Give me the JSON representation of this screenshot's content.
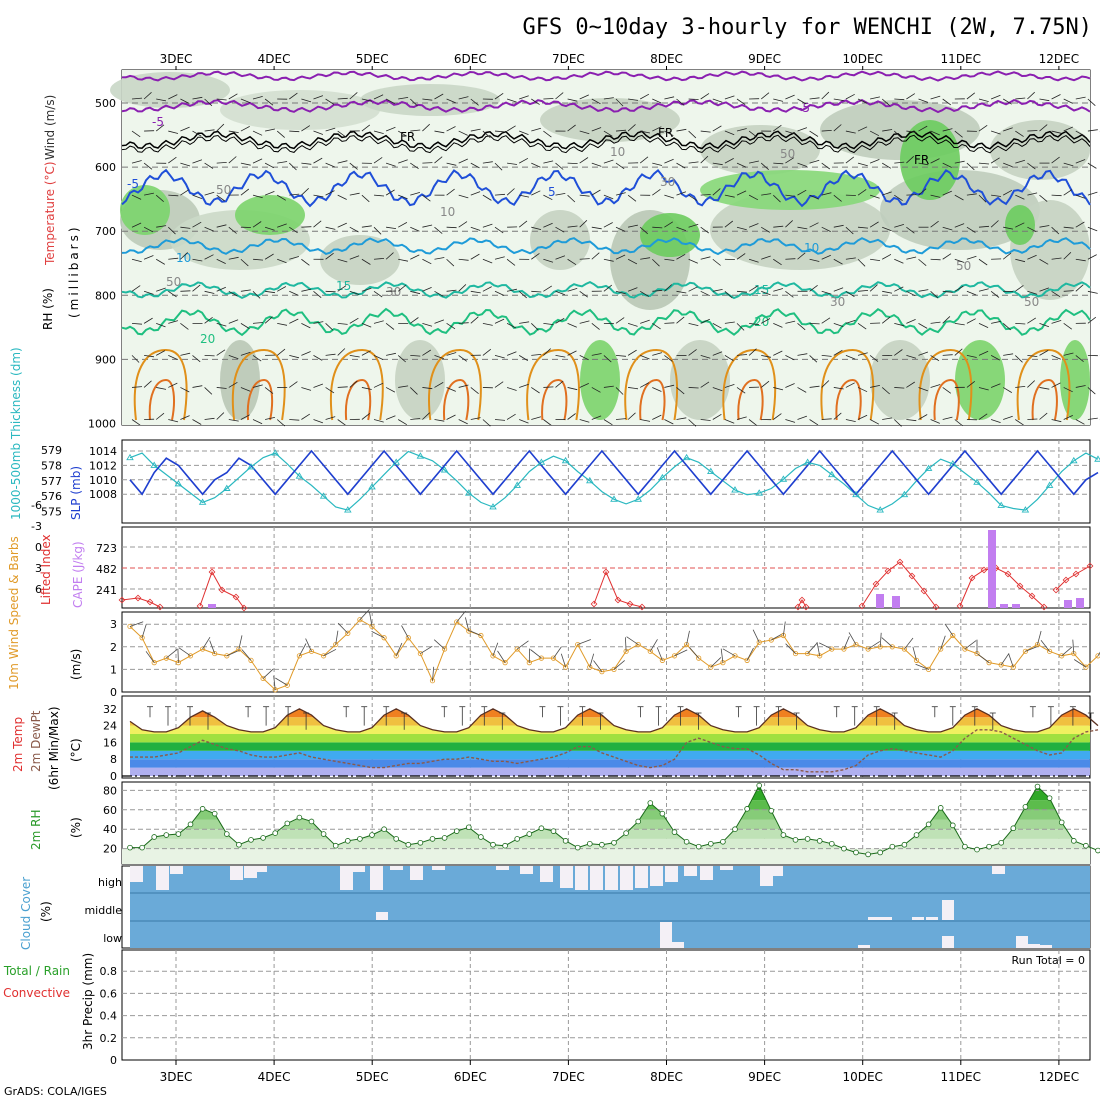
{
  "title": "GFS 0~10day 3-hourly for WENCHI (2W, 7.75N)",
  "footer": "GrADS: COLA/IGES",
  "dates": [
    "3DEC",
    "4DEC",
    "5DEC",
    "6DEC",
    "7DEC",
    "8DEC",
    "9DEC",
    "10DEC",
    "11DEC",
    "12DEC"
  ],
  "colors": {
    "temp_minus5": "#8a1fb0",
    "temp_5": "#1f4fd8",
    "temp_10": "#1e9bd8",
    "temp_15": "#1fb8a0",
    "temp_20": "#1fbf80",
    "temp_warm": "#e0901a",
    "freezing": "#000000",
    "slp": "#1f3fcf",
    "thickness": "#2ab8c0",
    "lifted": "#e03030",
    "cape": "#c27ef0",
    "wind10": "#e09a28",
    "rh2m": "#2a9a2a",
    "cloud_bg": "#6aaad8",
    "cloud_fill": "#f4f0f6",
    "dewpt": "#8a5a4a"
  },
  "panels": {
    "upper": {
      "y_label": "(millibars)",
      "title_wind": "Wind (m/s)",
      "title_temp": "Temperature (°C)",
      "title_rh": "RH (%)",
      "y_ticks": [
        "500",
        "600",
        "700",
        "800",
        "900",
        "1000"
      ],
      "contour_labels": {
        "minus5": "-5",
        "fr": "FR",
        "five": "5",
        "ten": "10",
        "fifteen": "15",
        "twenty": "20",
        "rh30": "30",
        "rh50": "50",
        "rh10": "10"
      }
    },
    "slp": {
      "title_thick": "1000-500mb Thickness (dm)",
      "title_slp": "SLP (mb)",
      "thickness_ticks": [
        "579",
        "578",
        "577",
        "576",
        "575"
      ],
      "slp_ticks": [
        "1014",
        "1012",
        "1010",
        "1008"
      ]
    },
    "cape": {
      "title_li": "Lifted Index",
      "title_cape": "CAPE (J/kg)",
      "li_ticks": [
        "-6",
        "-3",
        "0",
        "3",
        "6"
      ],
      "cape_ticks": [
        "723",
        "482",
        "241"
      ]
    },
    "wind10": {
      "title": "10m Wind Speed & Barbs",
      "unit": "(m/s)",
      "ticks": [
        "3",
        "2",
        "1",
        "0"
      ]
    },
    "temp2m": {
      "title1": "2m Temp",
      "title2": "2m DewPt",
      "title3": "(6hr Min/Max)",
      "unit": "(°C)",
      "ticks": [
        "32",
        "24",
        "16",
        "8",
        "0"
      ]
    },
    "rh2m": {
      "title": "2m RH",
      "unit": "(%)",
      "ticks": [
        "80",
        "60",
        "40",
        "20"
      ]
    },
    "cloud": {
      "title": "Cloud Cover",
      "unit": "(%)",
      "levels": [
        "high",
        "middle",
        "low"
      ]
    },
    "precip": {
      "title1": "Total / Rain",
      "title2": "Convective",
      "ylabel": "3hr Precip (mm)",
      "run_total": "Run Total = 0",
      "ticks": [
        "0.8",
        "0.6",
        "0.4",
        "0.2",
        "0"
      ]
    }
  },
  "chart_data": [
    {
      "type": "line",
      "title": "1000-500mb Thickness (dm) / SLP (mb)",
      "x": "3-hourly steps from 2 Dec 12Z to 12 Dec 12Z",
      "series": [
        {
          "name": "SLP (mb)",
          "values": [
            1010,
            1008,
            1011,
            1013,
            1012,
            1010,
            1008,
            1010,
            1011,
            1013,
            1012,
            1010,
            1008,
            1010,
            1012,
            1014,
            1012,
            1010,
            1008,
            1010,
            1012,
            1014,
            1012,
            1010,
            1008,
            1010,
            1012,
            1014,
            1012,
            1010,
            1008,
            1010,
            1012,
            1014,
            1012,
            1010,
            1008,
            1010,
            1012,
            1014,
            1012,
            1010,
            1008,
            1010,
            1012,
            1014,
            1012,
            1010,
            1008,
            1010,
            1012,
            1014,
            1012,
            1010,
            1008,
            1010,
            1012,
            1014,
            1012,
            1010,
            1008,
            1010,
            1012,
            1014,
            1012,
            1010,
            1008,
            1010,
            1012,
            1014,
            1012,
            1010,
            1008,
            1010,
            1012,
            1014,
            1012,
            1010,
            1008,
            1010,
            1011
          ]
        },
        {
          "name": "1000-500mb Thickness (dm)",
          "values": [
            578.5,
            578.8,
            578,
            577.4,
            576.8,
            576.2,
            575.6,
            575.9,
            576.5,
            577.2,
            577.9,
            578.5,
            578.8,
            578.1,
            577.3,
            576.7,
            576,
            575.3,
            575.1,
            575.8,
            576.6,
            577.4,
            578.2,
            578.9,
            578.6,
            578.3,
            577.7,
            577,
            576.2,
            575.6,
            575.3,
            575.9,
            576.7,
            577.6,
            578.2,
            578.6,
            578.3,
            577.6,
            577,
            576.3,
            575.8,
            575.5,
            575.8,
            576.4,
            577.2,
            577.9,
            578.5,
            578.2,
            577.6,
            577,
            576.4,
            576.1,
            576.2,
            576.5,
            577.1,
            577.8,
            578.2,
            578,
            577.4,
            576.8,
            576.1,
            575.4,
            575.1,
            575.5,
            576.1,
            577,
            577.8,
            578.4,
            578.1,
            577.5,
            576.9,
            576.2,
            575.4,
            575.2,
            575.1,
            575.8,
            576.7,
            577.6,
            578.3,
            578.8,
            578.4
          ]
        }
      ]
    },
    {
      "type": "line",
      "title": "Lifted Index / CAPE (J/kg)",
      "series": [
        {
          "name": "Lifted Index",
          "values": [
            5.2,
            4.8,
            5.5,
            6,
            6,
            6,
            6,
            3,
            2.5,
            3.8,
            4.5,
            6,
            6,
            6,
            6,
            6,
            6,
            6,
            6,
            6,
            6,
            6,
            6,
            6,
            6,
            6,
            6,
            6,
            6,
            6,
            6,
            6,
            6,
            6,
            6,
            6,
            6,
            6,
            6,
            6,
            6,
            6,
            6,
            6,
            6,
            6,
            6,
            6,
            6,
            6,
            6,
            6,
            6,
            6,
            6,
            6,
            6,
            6,
            6,
            6,
            6,
            6,
            6,
            6,
            6,
            6,
            6,
            6,
            6,
            6,
            6,
            6,
            6,
            6,
            6,
            6,
            6,
            6,
            6,
            6,
            6
          ]
        },
        {
          "name": "CAPE (J/kg)",
          "values": [
            0,
            0,
            0,
            0,
            0,
            0,
            0,
            20,
            0,
            0,
            0,
            0,
            0,
            0,
            0,
            0,
            0,
            0,
            0,
            0,
            0,
            0,
            0,
            0,
            0,
            0,
            0,
            0,
            0,
            0,
            0,
            0,
            0,
            0,
            0,
            0,
            0,
            0,
            0,
            0,
            0,
            0,
            0,
            0,
            0,
            0,
            0,
            0,
            0,
            0,
            0,
            0,
            0,
            0,
            0,
            0,
            0,
            0,
            0,
            0,
            0,
            0,
            0,
            0,
            0,
            0,
            0,
            0,
            0,
            0,
            0,
            0,
            0,
            0,
            0,
            0,
            0,
            0,
            0,
            0,
            0
          ]
        }
      ]
    },
    {
      "type": "line",
      "title": "10m Wind Speed & Barbs (m/s)",
      "series": [
        {
          "name": "10m Wind Speed",
          "values": [
            2.9,
            2.4,
            1.3,
            1.5,
            1.3,
            1.6,
            1.9,
            1.7,
            1.6,
            1.9,
            1.4,
            0.6,
            0.1,
            0.3,
            1.6,
            1.8,
            1.6,
            2.1,
            2.6,
            3.2,
            2.9,
            2.4,
            1.6,
            2.4,
            1.7,
            0.5,
            1.9,
            3.1,
            2.7,
            2.5,
            1.6,
            1.3,
            1.9,
            1.3,
            1.5,
            1.5,
            1.1,
            2.1,
            1.1,
            0.9,
            1.0,
            1.8,
            2.1,
            1.8,
            1.4,
            1.6,
            2.1,
            1.5,
            1.1,
            1.3,
            1.6,
            1.4,
            2.2,
            2.3,
            2.5,
            1.7,
            1.7,
            1.6,
            1.9,
            1.9,
            2.1,
            1.9,
            2.0,
            2.0,
            1.9,
            1.4,
            1.0,
            1.9,
            2.5,
            1.9,
            1.7,
            1.3,
            1.2,
            1.1,
            1.8,
            2.1,
            1.8,
            1.6,
            1.7,
            1.1,
            1.6
          ]
        }
      ]
    },
    {
      "type": "area",
      "title": "2m Temp / 2m DewPt (°C)",
      "series": [
        {
          "name": "2m Temp",
          "values": [
            26,
            22,
            21,
            21,
            23,
            28,
            31,
            28,
            24,
            22,
            21,
            21,
            23,
            29,
            32,
            29,
            24,
            22,
            21,
            21,
            23,
            29,
            32,
            29,
            24,
            22,
            21,
            21,
            23,
            29,
            32,
            29,
            24,
            22,
            21,
            21,
            23,
            29,
            32,
            29,
            24,
            22,
            21,
            21,
            23,
            29,
            32,
            29,
            24,
            22,
            21,
            21,
            23,
            29,
            32,
            29,
            24,
            22,
            21,
            21,
            23,
            29,
            32,
            29,
            24,
            22,
            21,
            21,
            23,
            29,
            32,
            29,
            24,
            22,
            21,
            21,
            23,
            29,
            32,
            29,
            24
          ]
        },
        {
          "name": "2m DewPt",
          "values": [
            9,
            9,
            9,
            10,
            11,
            14,
            17,
            15,
            13,
            12,
            10,
            9,
            9,
            10,
            11,
            9,
            8,
            7,
            6,
            5,
            4,
            4,
            5,
            6,
            6,
            7,
            8,
            8,
            9,
            8,
            7,
            7,
            6,
            7,
            8,
            9,
            11,
            14,
            14,
            11,
            9,
            7,
            5,
            4,
            5,
            8,
            16,
            18,
            16,
            14,
            13,
            13,
            10,
            6,
            3,
            3,
            2,
            2,
            2,
            3,
            5,
            10,
            12,
            13,
            12,
            11,
            10,
            9,
            12,
            18,
            22,
            22,
            21,
            18,
            15,
            12,
            10,
            11,
            18,
            21,
            22
          ]
        }
      ]
    },
    {
      "type": "line",
      "title": "2m RH (%)",
      "series": [
        {
          "name": "2m RH",
          "values": [
            21,
            21,
            32,
            34,
            35,
            45,
            61,
            56,
            35,
            24,
            29,
            31,
            36,
            46,
            52,
            48,
            35,
            23,
            28,
            30,
            34,
            40,
            30,
            24,
            26,
            30,
            31,
            38,
            42,
            32,
            24,
            23,
            30,
            35,
            41,
            38,
            28,
            21,
            25,
            24,
            26,
            36,
            48,
            67,
            56,
            37,
            27,
            22,
            25,
            27,
            40,
            61,
            85,
            59,
            34,
            29,
            30,
            28,
            25,
            20,
            16,
            14,
            16,
            22,
            24,
            34,
            45,
            62,
            44,
            22,
            19,
            22,
            26,
            41,
            63,
            84,
            72,
            47,
            28,
            23,
            18
          ]
        }
      ]
    }
  ]
}
